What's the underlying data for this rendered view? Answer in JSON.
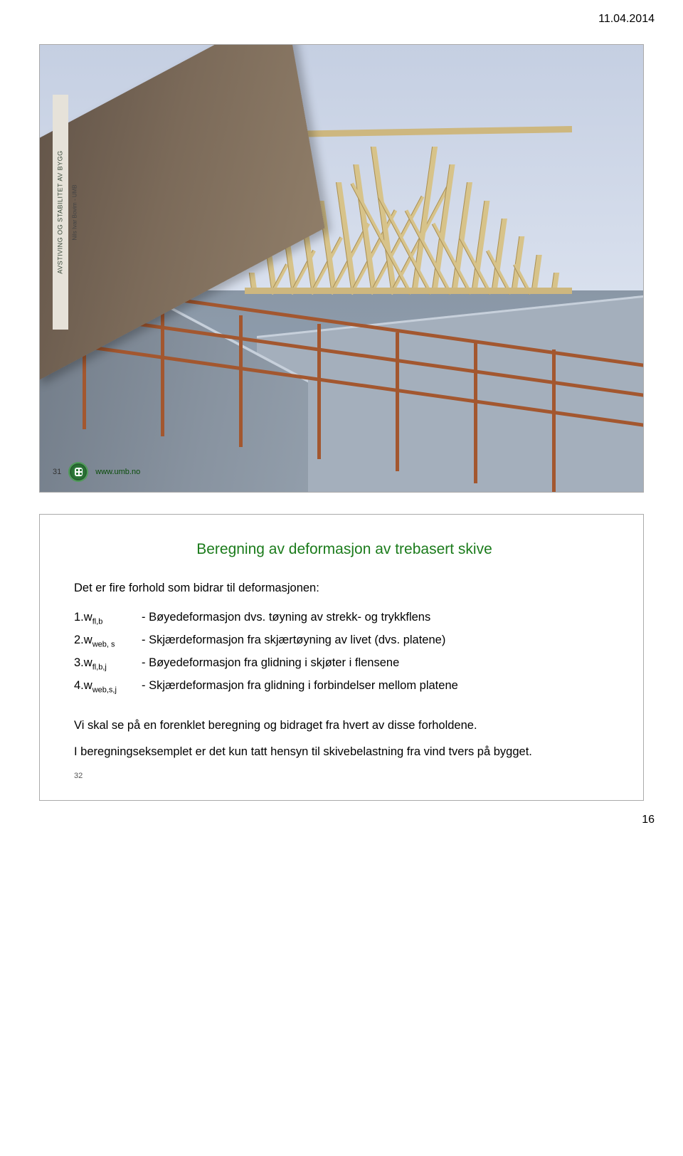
{
  "header_date": "11.04.2014",
  "page_number": "16",
  "slide1": {
    "sidebar_main": "AVSTIVING OG STABILITET AV BYGG",
    "sidebar_sub": "Nils Ivar Bovim - UMB",
    "number": "31",
    "url": "www.umb.no",
    "colors": {
      "sky_top": "#c5cfe2",
      "roof": "#7b6a59",
      "truss": "#d7c38a",
      "scaffold": "#a3572f",
      "wall": "#8893a0"
    }
  },
  "slide2": {
    "title": "Beregning av deformasjon av trebasert skive",
    "intro": "Det er fire forhold som bidrar til deformasjonen:",
    "defs": [
      {
        "k": "1.w",
        "sub": "fl,b",
        "v": "- Bøyedeformasjon dvs. tøyning av strekk- og trykkflens"
      },
      {
        "k": "2.w",
        "sub": "web, s",
        "v": "- Skjærdeformasjon fra skjærtøyning av livet (dvs. platene)"
      },
      {
        "k": "3.w",
        "sub": "fl,b,j",
        "v": "- Bøyedeformasjon fra glidning i skjøter i flensene"
      },
      {
        "k": "4.w",
        "sub": "web,s,j",
        "v": "- Skjærdeformasjon fra glidning i forbindelser mellom platene"
      }
    ],
    "outro1": "Vi skal se på en forenklet beregning og bidraget fra hvert av disse forholdene.",
    "outro2": "I beregningseksemplet er det kun tatt hensyn til skivebelastning fra vind tvers på bygget.",
    "number": "32"
  }
}
